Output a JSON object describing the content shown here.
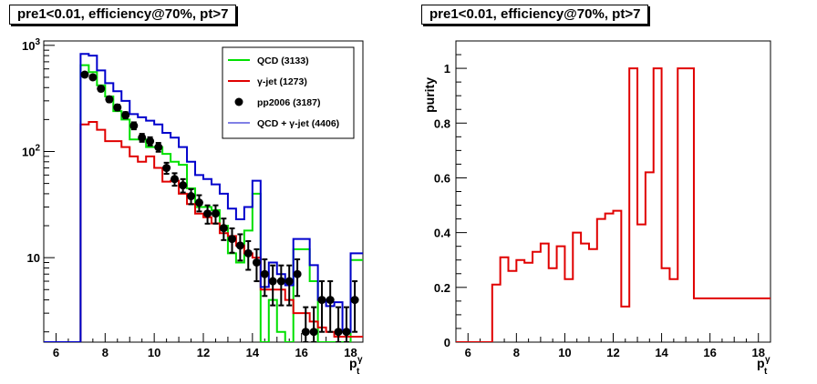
{
  "chart_data": [
    {
      "type": "histogram",
      "title": "pre1<0.01, efficiency@70%, pt>7",
      "xlabel": "p_t^γ",
      "ylabel": "",
      "xlim": [
        5.5,
        18.5
      ],
      "ylim": [
        1.6,
        1100
      ],
      "yscale": "log",
      "xticks": [
        6,
        8,
        10,
        12,
        14,
        16,
        18
      ],
      "yticks": [
        {
          "value": 10,
          "label": "10"
        },
        {
          "value": 100,
          "label": "10^2"
        },
        {
          "value": 1000,
          "label": "10^3"
        }
      ],
      "grid": false,
      "legend_position": "top-right",
      "bin_edges": [
        5.5,
        7.0,
        7.3333,
        7.6667,
        8.0,
        8.3333,
        8.6667,
        9.0,
        9.3333,
        9.6667,
        10.0,
        10.3333,
        10.6667,
        11.0,
        11.3333,
        11.6667,
        12.0,
        12.3333,
        12.6667,
        13.0,
        13.3333,
        13.6667,
        14.0,
        14.3333,
        14.6667,
        15.0,
        15.3333,
        15.6667,
        16.0,
        16.3333,
        16.6667,
        17.0,
        17.3333,
        17.6667,
        18.0,
        18.3333,
        18.5
      ],
      "series": [
        {
          "name": "QCD (3133)",
          "style": "step",
          "color": "#00e000",
          "values": [
            1.6,
            650,
            560,
            420,
            330,
            240,
            200,
            130,
            130,
            110,
            110,
            95,
            80,
            75,
            45,
            30,
            30,
            28,
            20,
            11,
            9,
            18,
            40,
            1.6,
            4,
            2,
            1.6,
            12,
            12,
            6,
            1.6,
            1.6,
            1.6,
            1.6,
            9.5,
            9.5
          ]
        },
        {
          "name": "γ-jet (1273)",
          "style": "step",
          "color": "#e00000",
          "values": [
            1.6,
            180,
            190,
            160,
            125,
            125,
            110,
            90,
            80,
            90,
            70,
            52,
            53,
            40,
            32,
            26,
            24,
            21,
            17,
            16,
            13,
            11,
            10,
            5,
            5,
            5,
            4,
            3,
            3,
            2.5,
            2.2,
            2,
            1.8,
            1.8,
            1.8,
            1.8
          ]
        },
        {
          "name": "QCD + γ-jet (4406)",
          "style": "step",
          "color": "#0000cc",
          "values": [
            1.6,
            830,
            800,
            580,
            440,
            370,
            300,
            225,
            210,
            195,
            180,
            150,
            135,
            110,
            80,
            60,
            55,
            49,
            40,
            29,
            23,
            30,
            53,
            5.3,
            9,
            7,
            5.5,
            15,
            15,
            8.5,
            4,
            3.5,
            3.8,
            2,
            11,
            11
          ]
        },
        {
          "name": "pp2006 (3187)",
          "style": "points",
          "color": "#000000",
          "x": [
            7.17,
            7.5,
            7.83,
            8.17,
            8.5,
            8.83,
            9.17,
            9.5,
            9.83,
            10.17,
            10.5,
            10.83,
            11.17,
            11.5,
            11.83,
            12.17,
            12.5,
            12.83,
            13.17,
            13.5,
            13.83,
            14.17,
            14.5,
            14.83,
            15.17,
            15.5,
            15.83,
            16.17,
            16.5,
            16.83,
            17.17,
            17.5,
            17.83,
            18.17
          ],
          "values": [
            530,
            500,
            390,
            310,
            260,
            220,
            175,
            135,
            125,
            110,
            70,
            55,
            48,
            38,
            33,
            26,
            26,
            19,
            15,
            13,
            11,
            9,
            7,
            6,
            6,
            6,
            7,
            2,
            2,
            4,
            4,
            2,
            2,
            4
          ]
        }
      ]
    },
    {
      "type": "histogram",
      "title": "pre1<0.01, efficiency@70%, pt>7",
      "xlabel": "p_t^γ",
      "ylabel": "purity",
      "xlim": [
        5.5,
        18.5
      ],
      "ylim": [
        0,
        1.1
      ],
      "xticks": [
        6,
        8,
        10,
        12,
        14,
        16,
        18
      ],
      "yticks": [
        {
          "value": 0,
          "label": "0"
        },
        {
          "value": 0.2,
          "label": "0.2"
        },
        {
          "value": 0.4,
          "label": "0.4"
        },
        {
          "value": 0.6,
          "label": "0.6"
        },
        {
          "value": 0.8,
          "label": "0.8"
        },
        {
          "value": 1,
          "label": "1"
        }
      ],
      "grid": false,
      "bin_edges": [
        5.5,
        7.0,
        7.3333,
        7.6667,
        8.0,
        8.3333,
        8.6667,
        9.0,
        9.3333,
        9.6667,
        10.0,
        10.3333,
        10.6667,
        11.0,
        11.3333,
        11.6667,
        12.0,
        12.3333,
        12.6667,
        13.0,
        13.3333,
        13.6667,
        14.0,
        14.3333,
        14.6667,
        15.0,
        15.3333,
        15.6667,
        16.0,
        16.3333,
        16.6667,
        17.0,
        17.3333,
        17.6667,
        18.0,
        18.3333,
        18.5
      ],
      "series": [
        {
          "name": "",
          "style": "step",
          "color": "#e00000",
          "values": [
            0,
            0.21,
            0.31,
            0.26,
            0.3,
            0.29,
            0.33,
            0.36,
            0.27,
            0.35,
            0.23,
            0.4,
            0.36,
            0.34,
            0.45,
            0.47,
            0.48,
            0.13,
            1.0,
            0.43,
            0.62,
            1.0,
            0.27,
            0.23,
            1.0,
            1.0,
            0.16,
            0.16,
            0.16,
            0.16,
            0.16,
            0.16,
            0.16,
            0.16,
            0.16,
            0.16
          ]
        }
      ]
    }
  ]
}
